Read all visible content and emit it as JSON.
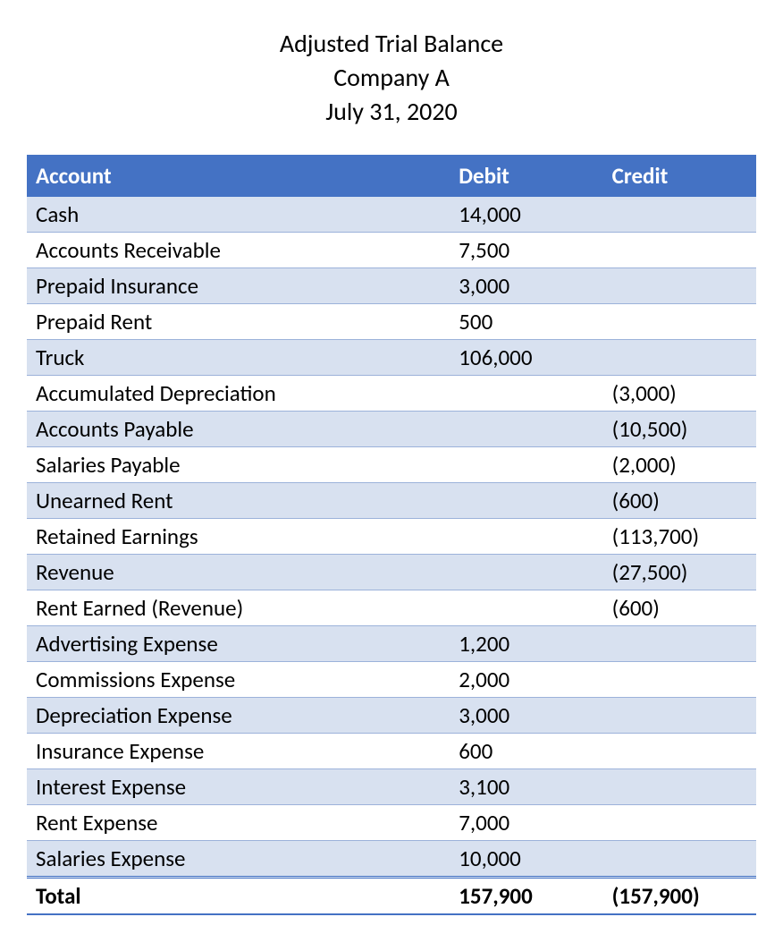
{
  "header": {
    "line1": "Adjusted Trial Balance",
    "line2": "Company A",
    "line3": "July 31, 2020"
  },
  "table": {
    "columns": {
      "account": "Account",
      "debit": "Debit",
      "credit": "Credit"
    },
    "header_bg_color": "#4472c4",
    "header_text_color": "#ffffff",
    "band_color_even": "#d8e1f0",
    "band_color_odd": "#ffffff",
    "border_color": "#9cb2da",
    "column_widths_pct": [
      58,
      21,
      21
    ],
    "font_size_pt": 19,
    "rows": [
      {
        "account": "Cash",
        "debit": "14,000",
        "credit": ""
      },
      {
        "account": "Accounts Receivable",
        "debit": "7,500",
        "credit": ""
      },
      {
        "account": "Prepaid Insurance",
        "debit": "3,000",
        "credit": ""
      },
      {
        "account": "Prepaid Rent",
        "debit": "500",
        "credit": ""
      },
      {
        "account": "Truck",
        "debit": "106,000",
        "credit": ""
      },
      {
        "account": "Accumulated Depreciation",
        "debit": "",
        "credit": "(3,000)"
      },
      {
        "account": "Accounts Payable",
        "debit": "",
        "credit": "(10,500)"
      },
      {
        "account": "Salaries Payable",
        "debit": "",
        "credit": "(2,000)"
      },
      {
        "account": "Unearned Rent",
        "debit": "",
        "credit": "(600)"
      },
      {
        "account": "Retained Earnings",
        "debit": "",
        "credit": "(113,700)"
      },
      {
        "account": "Revenue",
        "debit": "",
        "credit": "(27,500)"
      },
      {
        "account": "Rent Earned (Revenue)",
        "debit": "",
        "credit": "(600)"
      },
      {
        "account": "Advertising Expense",
        "debit": "1,200",
        "credit": ""
      },
      {
        "account": "Commissions Expense",
        "debit": "2,000",
        "credit": ""
      },
      {
        "account": "Depreciation Expense",
        "debit": "3,000",
        "credit": ""
      },
      {
        "account": "Insurance Expense",
        "debit": "600",
        "credit": ""
      },
      {
        "account": "Interest Expense",
        "debit": "3,100",
        "credit": ""
      },
      {
        "account": "Rent Expense",
        "debit": "7,000",
        "credit": ""
      },
      {
        "account": "Salaries Expense",
        "debit": "10,000",
        "credit": ""
      }
    ],
    "total": {
      "label": "Total",
      "debit": "157,900",
      "credit": "(157,900)"
    }
  }
}
